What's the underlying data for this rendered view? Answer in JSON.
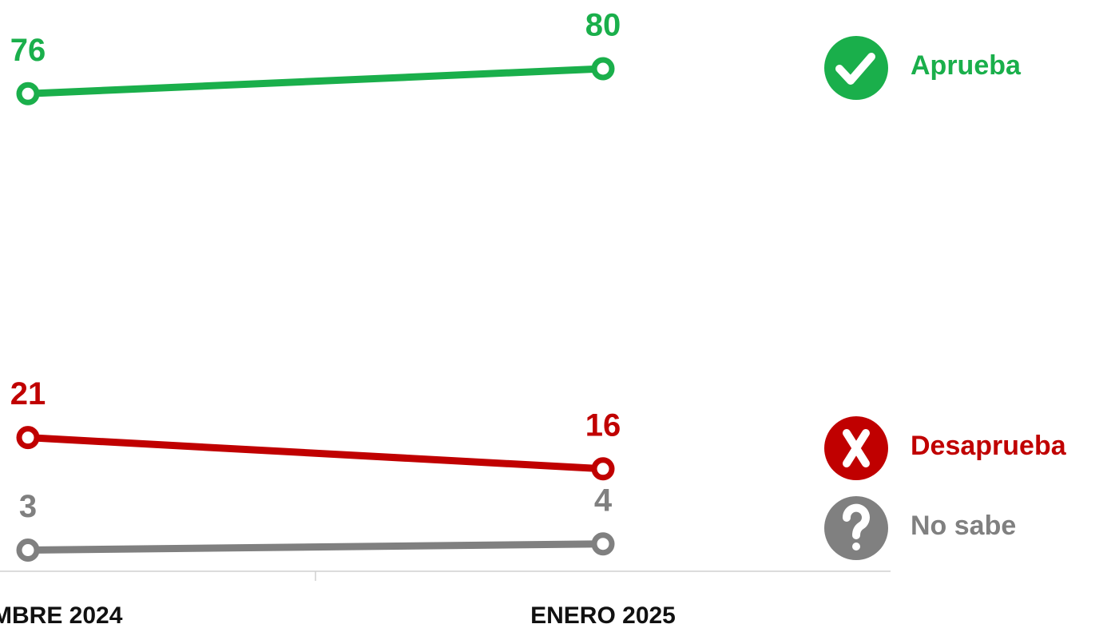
{
  "chart_data": {
    "type": "line",
    "categories": [
      "MBRE 2024",
      "ENERO 2025"
    ],
    "series": [
      {
        "name": "Aprueba",
        "color": "#1aaf4b",
        "values": [
          76,
          80
        ]
      },
      {
        "name": "Desaprueba",
        "color": "#c00000",
        "values": [
          21,
          16
        ]
      },
      {
        "name": "No sabe",
        "color": "#808080",
        "values": [
          3,
          4
        ]
      }
    ],
    "ylim": [
      0,
      80
    ]
  }
}
